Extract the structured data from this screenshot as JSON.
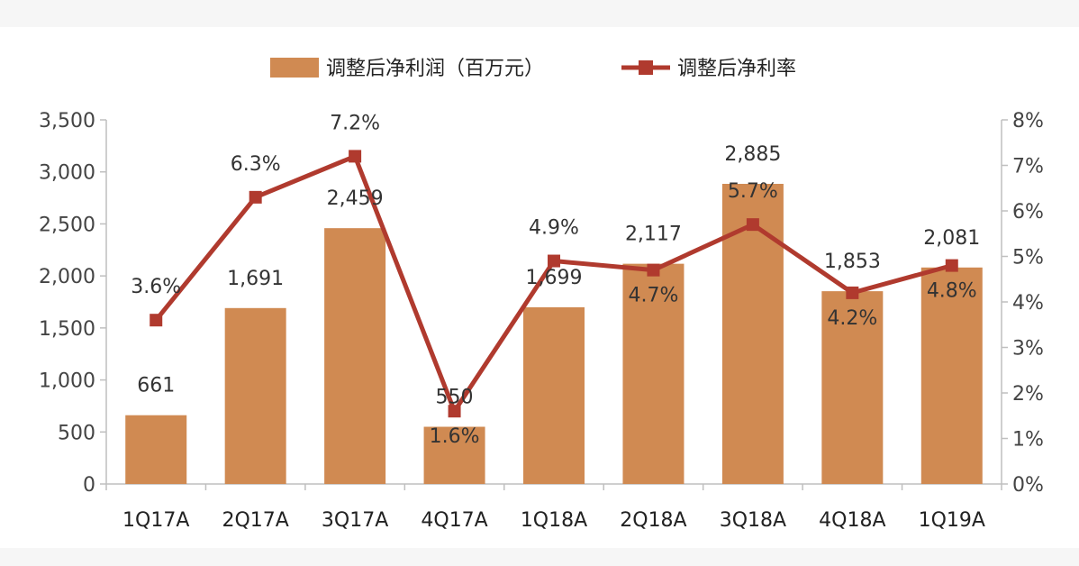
{
  "chart_data": {
    "type": "bar+line",
    "categories": [
      "1Q17A",
      "2Q17A",
      "3Q17A",
      "4Q17A",
      "1Q18A",
      "2Q18A",
      "3Q18A",
      "4Q18A",
      "1Q19A"
    ],
    "series": [
      {
        "name": "调整后净利润（百万元）",
        "type": "bar",
        "axis": "left",
        "color": "#d08a52",
        "values": [
          661,
          1691,
          2459,
          550,
          1699,
          2117,
          2885,
          1853,
          2081
        ],
        "labels": [
          "661",
          "1,691",
          "2,459",
          "550",
          "1,699",
          "2,117",
          "2,885",
          "1,853",
          "2,081"
        ]
      },
      {
        "name": "调整后净利率",
        "type": "line",
        "axis": "right",
        "color": "#b03a2e",
        "values": [
          3.6,
          6.3,
          7.2,
          1.6,
          4.9,
          4.7,
          5.7,
          4.2,
          4.8
        ],
        "labels": [
          "3.6%",
          "6.3%",
          "7.2%",
          "1.6%",
          "4.9%",
          "4.7%",
          "5.7%",
          "4.2%",
          "4.8%"
        ]
      }
    ],
    "y_left": {
      "range": [
        0,
        3500
      ],
      "ticks": [
        0,
        500,
        1000,
        1500,
        2000,
        2500,
        3000,
        3500
      ],
      "tick_labels": [
        "0",
        "500",
        "1,000",
        "1,500",
        "2,000",
        "2,500",
        "3,000",
        "3,500"
      ]
    },
    "y_right": {
      "range": [
        0,
        8
      ],
      "ticks": [
        0,
        1,
        2,
        3,
        4,
        5,
        6,
        7,
        8
      ],
      "tick_labels": [
        "0%",
        "1%",
        "2%",
        "3%",
        "4%",
        "5%",
        "6%",
        "7%",
        "8%"
      ]
    },
    "legend_position": "top-center",
    "grid": false
  }
}
